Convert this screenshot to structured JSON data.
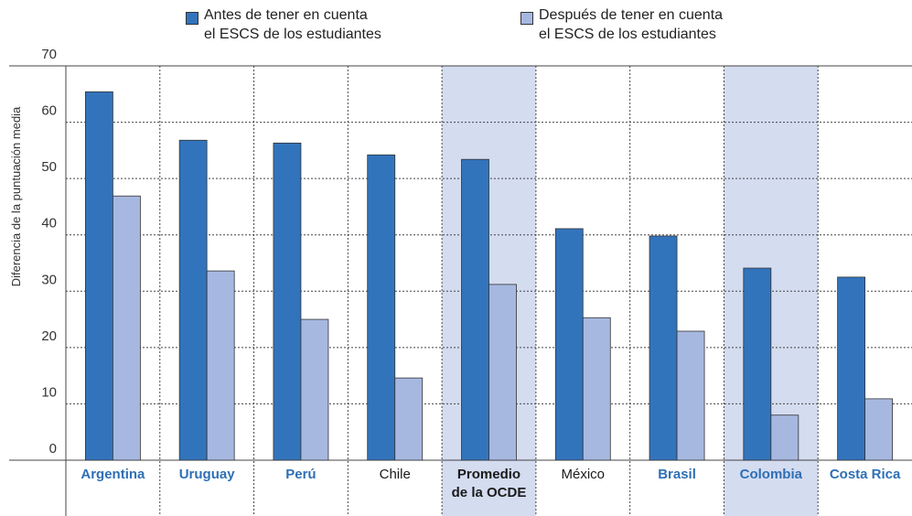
{
  "chart_data": {
    "type": "bar",
    "y_label": "Diferencia de la puntuación media",
    "categories": [
      "Argentina",
      "Uruguay",
      "Perú",
      "Chile",
      "Promedio\nde la OCDE",
      "México",
      "Brasil",
      "Colombia",
      "Costa Rica"
    ],
    "category_colors": [
      "#2e6fb5",
      "#2e6fb5",
      "#2e6fb5",
      "#1a1a1a",
      "#1a1a1a",
      "#1a1a1a",
      "#2e6fb5",
      "#2e6fb5",
      "#2e6fb5"
    ],
    "category_bold": [
      true,
      true,
      true,
      false,
      true,
      false,
      true,
      true,
      true
    ],
    "highlighted": [
      false,
      false,
      false,
      false,
      true,
      false,
      false,
      true,
      false
    ],
    "highlight_color": "#d4dcf0",
    "series": [
      {
        "name": "Antes de tener en cuenta\nel ESCS de los estudiantes",
        "color": "#3274bc",
        "values": [
          65.4,
          56.8,
          56.3,
          54.2,
          53.4,
          41.1,
          39.8,
          34.1,
          32.5
        ]
      },
      {
        "name": "Después de tener en cuenta\nel ESCS de los estudiantes",
        "color": "#a7b8e0",
        "values": [
          46.9,
          33.6,
          25.0,
          14.6,
          31.2,
          25.3,
          22.9,
          8.0,
          10.9
        ]
      }
    ],
    "ylim": [
      0,
      70
    ],
    "yticks": [
      0,
      10,
      20,
      30,
      40,
      50,
      60,
      70
    ],
    "grid": true
  }
}
